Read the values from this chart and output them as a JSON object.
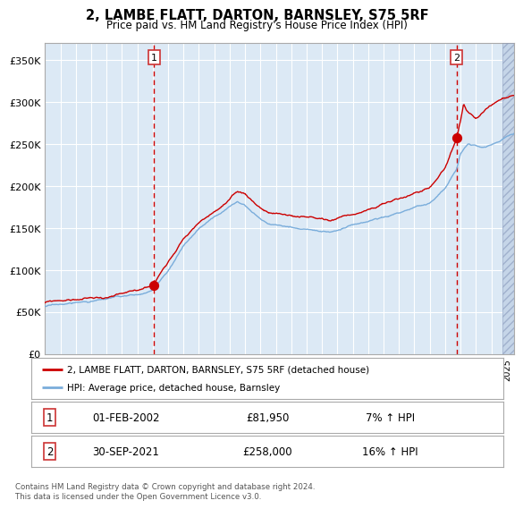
{
  "title": "2, LAMBE FLATT, DARTON, BARNSLEY, S75 5RF",
  "subtitle": "Price paid vs. HM Land Registry's House Price Index (HPI)",
  "ylim": [
    0,
    370000
  ],
  "yticks": [
    0,
    50000,
    100000,
    150000,
    200000,
    250000,
    300000,
    350000
  ],
  "ytick_labels": [
    "£0",
    "£50K",
    "£100K",
    "£150K",
    "£200K",
    "£250K",
    "£300K",
    "£350K"
  ],
  "plot_bg_color": "#dce9f5",
  "grid_color": "#ffffff",
  "red_line_color": "#cc0000",
  "blue_line_color": "#7aaddb",
  "legend_label_red": "2, LAMBE FLATT, DARTON, BARNSLEY, S75 5RF (detached house)",
  "legend_label_blue": "HPI: Average price, detached house, Barnsley",
  "sale1_date": "01-FEB-2002",
  "sale1_price": "£81,950",
  "sale1_hpi": "7% ↑ HPI",
  "sale1_x": 2002.08,
  "sale1_y": 81950,
  "sale2_date": "30-SEP-2021",
  "sale2_price": "£258,000",
  "sale2_hpi": "16% ↑ HPI",
  "sale2_x": 2021.75,
  "sale2_y": 258000,
  "footer": "Contains HM Land Registry data © Crown copyright and database right 2024.\nThis data is licensed under the Open Government Licence v3.0.",
  "xmin": 1995,
  "xmax": 2025.5,
  "future_shade_start": 2024.75,
  "blue_keys": [
    [
      1995.0,
      57000
    ],
    [
      1996.0,
      59000
    ],
    [
      1997.0,
      61000
    ],
    [
      1998.0,
      63000
    ],
    [
      1999.0,
      65000
    ],
    [
      2000.0,
      67000
    ],
    [
      2001.0,
      69000
    ],
    [
      2002.0,
      74000
    ],
    [
      2003.0,
      98000
    ],
    [
      2004.0,
      128000
    ],
    [
      2005.0,
      148000
    ],
    [
      2006.0,
      162000
    ],
    [
      2007.0,
      175000
    ],
    [
      2007.5,
      183000
    ],
    [
      2008.0,
      180000
    ],
    [
      2008.7,
      168000
    ],
    [
      2009.5,
      158000
    ],
    [
      2010.0,
      157000
    ],
    [
      2011.0,
      156000
    ],
    [
      2012.0,
      153000
    ],
    [
      2013.0,
      150000
    ],
    [
      2013.5,
      149000
    ],
    [
      2014.0,
      152000
    ],
    [
      2015.0,
      157000
    ],
    [
      2016.0,
      161000
    ],
    [
      2017.0,
      166000
    ],
    [
      2018.0,
      172000
    ],
    [
      2019.0,
      177000
    ],
    [
      2020.0,
      182000
    ],
    [
      2020.5,
      190000
    ],
    [
      2021.0,
      200000
    ],
    [
      2021.75,
      222000
    ],
    [
      2022.0,
      240000
    ],
    [
      2022.5,
      252000
    ],
    [
      2023.0,
      248000
    ],
    [
      2023.5,
      246000
    ],
    [
      2024.0,
      250000
    ],
    [
      2024.75,
      258000
    ],
    [
      2025.3,
      263000
    ]
  ],
  "red_keys": [
    [
      1995.0,
      61000
    ],
    [
      1996.0,
      63500
    ],
    [
      1997.0,
      65000
    ],
    [
      1998.0,
      67000
    ],
    [
      1999.0,
      68000
    ],
    [
      2000.0,
      70000
    ],
    [
      2001.0,
      72000
    ],
    [
      2002.08,
      81950
    ],
    [
      2003.0,
      110000
    ],
    [
      2004.0,
      140000
    ],
    [
      2005.0,
      158000
    ],
    [
      2006.0,
      172000
    ],
    [
      2007.0,
      185000
    ],
    [
      2007.5,
      193000
    ],
    [
      2008.0,
      191000
    ],
    [
      2008.7,
      180000
    ],
    [
      2009.5,
      170000
    ],
    [
      2010.0,
      168000
    ],
    [
      2011.0,
      166000
    ],
    [
      2012.0,
      164000
    ],
    [
      2013.0,
      162000
    ],
    [
      2013.5,
      160000
    ],
    [
      2014.0,
      164000
    ],
    [
      2015.0,
      169000
    ],
    [
      2016.0,
      174000
    ],
    [
      2017.0,
      180000
    ],
    [
      2018.0,
      186000
    ],
    [
      2019.0,
      192000
    ],
    [
      2020.0,
      200000
    ],
    [
      2020.5,
      212000
    ],
    [
      2021.0,
      226000
    ],
    [
      2021.75,
      258000
    ],
    [
      2022.0,
      278000
    ],
    [
      2022.2,
      298000
    ],
    [
      2022.4,
      290000
    ],
    [
      2022.7,
      285000
    ],
    [
      2023.0,
      280000
    ],
    [
      2023.5,
      288000
    ],
    [
      2024.0,
      295000
    ],
    [
      2024.75,
      303000
    ],
    [
      2025.3,
      308000
    ]
  ]
}
